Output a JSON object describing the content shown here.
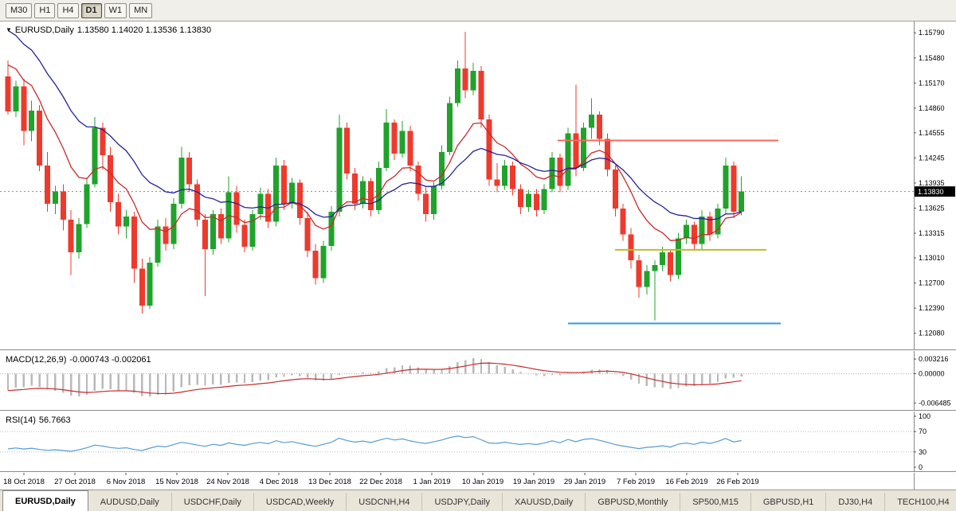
{
  "toolbar": {
    "timeframes": [
      {
        "label": "M30",
        "active": false
      },
      {
        "label": "H1",
        "active": false
      },
      {
        "label": "H4",
        "active": false
      },
      {
        "label": "D1",
        "active": true
      },
      {
        "label": "W1",
        "active": false
      },
      {
        "label": "MN",
        "active": false
      }
    ]
  },
  "chart_data": {
    "type": "candlestick",
    "symbol": "EURUSD",
    "timeframe": "Daily",
    "title_symbol": "EURUSD,Daily",
    "title_ohlc": "1.13580 1.14020 1.13536 1.13830",
    "last_candle": {
      "open": "1.13580",
      "high": "1.14020",
      "low": "1.13536",
      "close": "1.13830"
    },
    "current_price": {
      "label": "1.13830",
      "value": 1.1383
    },
    "price_range": [
      1.1187,
      1.1593
    ],
    "y_ticks": [
      {
        "label": "1.15790",
        "value": 1.1579
      },
      {
        "label": "1.15480",
        "value": 1.1548
      },
      {
        "label": "1.15170",
        "value": 1.1517
      },
      {
        "label": "1.14860",
        "value": 1.1486
      },
      {
        "label": "1.14555",
        "value": 1.14555
      },
      {
        "label": "1.14245",
        "value": 1.14245
      },
      {
        "label": "1.13935",
        "value": 1.13935
      },
      {
        "label": "1.13625",
        "value": 1.13625
      },
      {
        "label": "1.13315",
        "value": 1.13315
      },
      {
        "label": "1.13010",
        "value": 1.1301
      },
      {
        "label": "1.12700",
        "value": 1.127
      },
      {
        "label": "1.12390",
        "value": 1.1239
      },
      {
        "label": "1.12080",
        "value": 1.1208
      }
    ],
    "x_labels": [
      "18 Oct 2018",
      "27 Oct 2018",
      "6 Nov 2018",
      "15 Nov 2018",
      "24 Nov 2018",
      "4 Dec 2018",
      "13 Dec 2018",
      "22 Dec 2018",
      "1 Jan 2019",
      "10 Jan 2019",
      "19 Jan 2019",
      "29 Jan 2019",
      "7 Feb 2019",
      "16 Feb 2019",
      "26 Feb 2019"
    ],
    "colors": {
      "up": "#1fa32b",
      "down": "#ee3a2d",
      "ma_fast": "#c92a2a",
      "ma_slow": "#22229a",
      "macd_hist": "#b9b9b9",
      "macd_signal": "#c92a2a",
      "rsi": "#569bd2",
      "bid_line": "#8a8a8a"
    },
    "overlays": {
      "ma_fast": {
        "name": "MA fast (red)",
        "period": 10,
        "seed": 1.1552
      },
      "ma_slow": {
        "name": "MA slow (blue)",
        "period": 21,
        "seed": 1.1592
      },
      "hlines": [
        {
          "name": "resistance-line-red",
          "value": 1.1446,
          "color": "#f4695e",
          "x1": 700,
          "x2": 977
        },
        {
          "name": "support-line-yellow",
          "value": 1.1311,
          "color": "#b9bd2f",
          "x1": 772,
          "x2": 962
        },
        {
          "name": "support-line-blue",
          "value": 1.122,
          "color": "#2e9bea",
          "x1": 713,
          "x2": 980
        }
      ]
    },
    "candles": [
      [
        1.1525,
        1.1545,
        1.1478,
        1.1482
      ],
      [
        1.1482,
        1.152,
        1.1475,
        1.1513
      ],
      [
        1.1513,
        1.1522,
        1.144,
        1.1458
      ],
      [
        1.1458,
        1.1495,
        1.1445,
        1.1483
      ],
      [
        1.1483,
        1.149,
        1.1408,
        1.1415
      ],
      [
        1.1415,
        1.1432,
        1.1358,
        1.1368
      ],
      [
        1.1368,
        1.139,
        1.1355,
        1.1383
      ],
      [
        1.1383,
        1.1392,
        1.1335,
        1.1348
      ],
      [
        1.1348,
        1.136,
        1.128,
        1.1308
      ],
      [
        1.1308,
        1.135,
        1.13,
        1.1343
      ],
      [
        1.1343,
        1.14,
        1.1338,
        1.1392
      ],
      [
        1.1392,
        1.1475,
        1.1388,
        1.1462
      ],
      [
        1.1462,
        1.1468,
        1.141,
        1.1428
      ],
      [
        1.1428,
        1.1438,
        1.1358,
        1.137
      ],
      [
        1.137,
        1.138,
        1.133,
        1.134
      ],
      [
        1.134,
        1.136,
        1.1325,
        1.1352
      ],
      [
        1.1352,
        1.1358,
        1.127,
        1.1288
      ],
      [
        1.1288,
        1.13,
        1.1232,
        1.1242
      ],
      [
        1.1242,
        1.1302,
        1.1238,
        1.1295
      ],
      [
        1.1295,
        1.1348,
        1.129,
        1.134
      ],
      [
        1.134,
        1.135,
        1.131,
        1.1318
      ],
      [
        1.1318,
        1.1375,
        1.1312,
        1.1368
      ],
      [
        1.1368,
        1.1438,
        1.1362,
        1.1425
      ],
      [
        1.1425,
        1.1432,
        1.1382,
        1.1392
      ],
      [
        1.1392,
        1.1398,
        1.134,
        1.1348
      ],
      [
        1.1348,
        1.1355,
        1.1254,
        1.1312
      ],
      [
        1.1312,
        1.136,
        1.1305,
        1.1355
      ],
      [
        1.1355,
        1.1362,
        1.1318,
        1.1325
      ],
      [
        1.1325,
        1.1402,
        1.132,
        1.1382
      ],
      [
        1.1382,
        1.139,
        1.1332,
        1.1342
      ],
      [
        1.1342,
        1.1348,
        1.1308,
        1.1315
      ],
      [
        1.1315,
        1.136,
        1.131,
        1.1355
      ],
      [
        1.1355,
        1.1388,
        1.1348,
        1.138
      ],
      [
        1.138,
        1.1386,
        1.1338,
        1.1346
      ],
      [
        1.1346,
        1.1425,
        1.134,
        1.1415
      ],
      [
        1.1415,
        1.1422,
        1.136,
        1.1368
      ],
      [
        1.1368,
        1.14,
        1.1362,
        1.1394
      ],
      [
        1.1394,
        1.1398,
        1.1342,
        1.135
      ],
      [
        1.135,
        1.1358,
        1.1302,
        1.131
      ],
      [
        1.131,
        1.1318,
        1.1268,
        1.1276
      ],
      [
        1.1276,
        1.1322,
        1.127,
        1.1316
      ],
      [
        1.1316,
        1.1365,
        1.131,
        1.1358
      ],
      [
        1.1358,
        1.1478,
        1.1352,
        1.1462
      ],
      [
        1.1462,
        1.1468,
        1.1398,
        1.1405
      ],
      [
        1.1405,
        1.1412,
        1.136,
        1.1368
      ],
      [
        1.1368,
        1.1402,
        1.1362,
        1.1396
      ],
      [
        1.1396,
        1.14,
        1.1352,
        1.136
      ],
      [
        1.136,
        1.142,
        1.1355,
        1.1412
      ],
      [
        1.1412,
        1.1485,
        1.1408,
        1.1468
      ],
      [
        1.1468,
        1.1472,
        1.1422,
        1.143
      ],
      [
        1.143,
        1.147,
        1.1425,
        1.1458
      ],
      [
        1.1458,
        1.1464,
        1.1408,
        1.1415
      ],
      [
        1.1415,
        1.142,
        1.1372,
        1.138
      ],
      [
        1.138,
        1.1388,
        1.1346,
        1.1355
      ],
      [
        1.1355,
        1.1395,
        1.1348,
        1.139
      ],
      [
        1.139,
        1.144,
        1.1385,
        1.1432
      ],
      [
        1.1432,
        1.15,
        1.1428,
        1.1492
      ],
      [
        1.1492,
        1.1545,
        1.1488,
        1.1535
      ],
      [
        1.1535,
        1.158,
        1.1498,
        1.1508
      ],
      [
        1.1508,
        1.1542,
        1.1502,
        1.1532
      ],
      [
        1.1532,
        1.1538,
        1.1462,
        1.1472
      ],
      [
        1.1472,
        1.1478,
        1.139,
        1.1398
      ],
      [
        1.1398,
        1.1418,
        1.1382,
        1.139
      ],
      [
        1.139,
        1.1422,
        1.1385,
        1.1415
      ],
      [
        1.1415,
        1.142,
        1.1378,
        1.1386
      ],
      [
        1.1386,
        1.1392,
        1.1355,
        1.1364
      ],
      [
        1.1364,
        1.1385,
        1.1358,
        1.138
      ],
      [
        1.138,
        1.1386,
        1.1352,
        1.136
      ],
      [
        1.136,
        1.1392,
        1.1355,
        1.1386
      ],
      [
        1.1386,
        1.1432,
        1.1382,
        1.1425
      ],
      [
        1.1425,
        1.143,
        1.1382,
        1.139
      ],
      [
        1.139,
        1.1462,
        1.1385,
        1.1455
      ],
      [
        1.1455,
        1.1515,
        1.1402,
        1.1412
      ],
      [
        1.1412,
        1.1468,
        1.1408,
        1.1462
      ],
      [
        1.1462,
        1.1498,
        1.1448,
        1.1478
      ],
      [
        1.1478,
        1.1482,
        1.144,
        1.1448
      ],
      [
        1.1448,
        1.1455,
        1.1402,
        1.141
      ],
      [
        1.141,
        1.1415,
        1.1352,
        1.1362
      ],
      [
        1.1362,
        1.1368,
        1.1322,
        1.133
      ],
      [
        1.133,
        1.1338,
        1.1288,
        1.1298
      ],
      [
        1.1298,
        1.1305,
        1.1252,
        1.1265
      ],
      [
        1.1265,
        1.1292,
        1.1256,
        1.1285
      ],
      [
        1.1285,
        1.1298,
        1.1224,
        1.1292
      ],
      [
        1.1292,
        1.1315,
        1.1285,
        1.1308
      ],
      [
        1.1308,
        1.1312,
        1.1272,
        1.128
      ],
      [
        1.128,
        1.1332,
        1.1275,
        1.1325
      ],
      [
        1.1325,
        1.1348,
        1.1318,
        1.1342
      ],
      [
        1.1342,
        1.1346,
        1.131,
        1.1318
      ],
      [
        1.1318,
        1.136,
        1.1312,
        1.1352
      ],
      [
        1.1352,
        1.1358,
        1.1322,
        1.133
      ],
      [
        1.133,
        1.1368,
        1.1325,
        1.1362
      ],
      [
        1.1362,
        1.1425,
        1.1355,
        1.1415
      ],
      [
        1.1415,
        1.142,
        1.135,
        1.1358
      ],
      [
        1.1358,
        1.1402,
        1.13536,
        1.1383
      ]
    ],
    "indicators": [
      {
        "name": "MACD",
        "name_label": "MACD(12,26,9)",
        "values_label": "-0.000743 -0.002061",
        "params": [
          12,
          26,
          9
        ],
        "range": [
          -0.0082,
          0.005
        ],
        "ticks": [
          {
            "label": "0.003216",
            "value": 0.003216
          },
          {
            "label": "0.00000",
            "value": 0
          },
          {
            "label": "-0.006485",
            "value": -0.006485
          }
        ]
      },
      {
        "name": "RSI",
        "name_label": "RSI(14)",
        "values_label": "56.7663",
        "params": [
          14
        ],
        "range": [
          0,
          100
        ],
        "levels": [
          70,
          30
        ],
        "ticks": [
          {
            "label": "100",
            "value": 100
          },
          {
            "label": "70",
            "value": 70
          },
          {
            "label": "30",
            "value": 30
          },
          {
            "label": "0",
            "value": 0
          }
        ]
      }
    ]
  },
  "tabs": [
    {
      "label": "EURUSD,Daily",
      "active": true
    },
    {
      "label": "AUDUSD,Daily",
      "active": false
    },
    {
      "label": "USDCHF,Daily",
      "active": false
    },
    {
      "label": "USDCAD,Weekly",
      "active": false
    },
    {
      "label": "USDCNH,H4",
      "active": false
    },
    {
      "label": "USDJPY,Daily",
      "active": false
    },
    {
      "label": "XAUUSD,Daily",
      "active": false
    },
    {
      "label": "GBPUSD,Monthly",
      "active": false
    },
    {
      "label": "SP500,M15",
      "active": false
    },
    {
      "label": "GBPUSD,H1",
      "active": false
    },
    {
      "label": "DJ30,H4",
      "active": false
    },
    {
      "label": "TECH100,H4",
      "active": false
    }
  ]
}
